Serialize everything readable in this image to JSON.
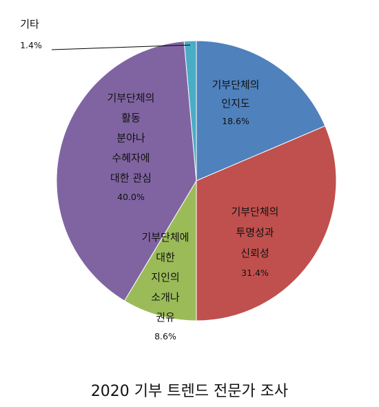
{
  "chart_data": {
    "type": "pie",
    "title": "2020 기부 트렌드 전문가 조사",
    "slices": [
      {
        "name": "기부단체의 인지도",
        "label_lines": [
          "기부단체의",
          "인지도"
        ],
        "value": 18.6,
        "value_label": "18.6%",
        "color": "#4f81bd"
      },
      {
        "name": "기부단체의 투명성과 신뢰성",
        "label_lines": [
          "기부단체의",
          "투명성과",
          "신뢰성"
        ],
        "value": 31.4,
        "value_label": "31.4%",
        "color": "#c0504d"
      },
      {
        "name": "기부단체에 대한 지인의 소개나 권유",
        "label_lines": [
          "기부단체에",
          "대한",
          "지인의",
          "소개나",
          "권유"
        ],
        "value": 8.6,
        "value_label": "8.6%",
        "color": "#9bbb59"
      },
      {
        "name": "기부단체의 활동 분야나 수혜자에 대한 관심",
        "label_lines": [
          "기부단체의",
          "활동",
          "분야나",
          "수혜자에",
          "대한 관심"
        ],
        "value": 40.0,
        "value_label": "40.0%",
        "color": "#8064a2"
      },
      {
        "name": "기타",
        "label_lines": [
          "기타"
        ],
        "value": 1.4,
        "value_label": "1.4%",
        "color": "#4bacc6"
      }
    ]
  }
}
